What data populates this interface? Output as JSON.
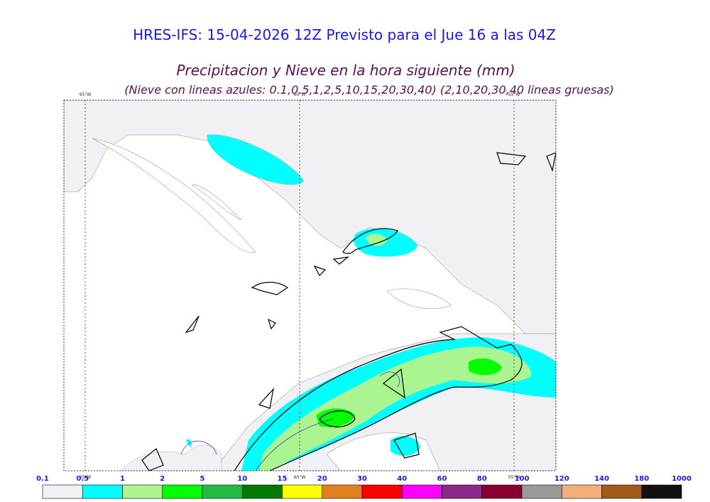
{
  "header": {
    "title": "HRES-IFS: 15-04-2026 12Z Previsto para el Jue 16 a las 04Z",
    "subtitle": "Precipitacion y Nieve en la hora siguiente (mm)",
    "note": "(Nieve con lineas azules: 0.1,0.5,1,2,5,10,15,20,30,40)  (2,10,20,30,40 lineas gruesas)"
  },
  "map": {
    "meridians": [
      "65°W",
      "60°W",
      "55°W"
    ]
  },
  "colorbar": {
    "labels": [
      "0.1",
      "0.5",
      "1",
      "2",
      "5",
      "10",
      "15",
      "20",
      "30",
      "40",
      "60",
      "80",
      "100",
      "120",
      "140",
      "180",
      "1000"
    ],
    "colors": [
      "#f0f0f5",
      "#00ffff",
      "#aaf590",
      "#00ff00",
      "#22bb44",
      "#007a00",
      "#ffff00",
      "#e08020",
      "#ff0000",
      "#ff00ff",
      "#8a2a88",
      "#8a0030",
      "#999999",
      "#f0b07a",
      "#a05a1a",
      "#111111"
    ]
  }
}
